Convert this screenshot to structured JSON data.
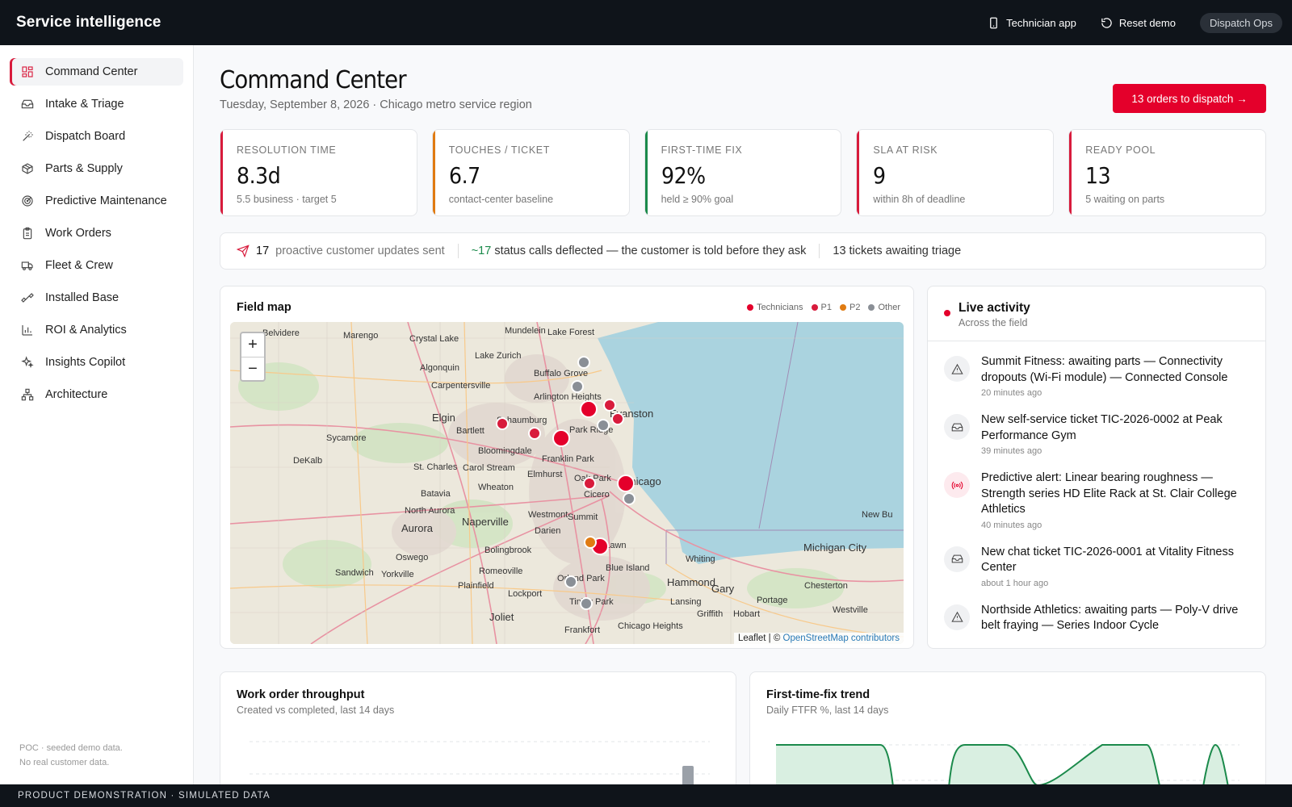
{
  "topbar": {
    "brand": "Service intelligence",
    "technician_app": "Technician app",
    "reset_demo": "Reset demo",
    "role": "Dispatch Ops"
  },
  "sidebar": {
    "items": [
      {
        "label": "Command Center",
        "icon": "grid-icon"
      },
      {
        "label": "Intake & Triage",
        "icon": "inbox-icon"
      },
      {
        "label": "Dispatch Board",
        "icon": "wand-icon"
      },
      {
        "label": "Parts & Supply",
        "icon": "package-icon"
      },
      {
        "label": "Predictive Maintenance",
        "icon": "radar-icon"
      },
      {
        "label": "Work Orders",
        "icon": "clipboard-icon"
      },
      {
        "label": "Fleet & Crew",
        "icon": "truck-icon"
      },
      {
        "label": "Installed Base",
        "icon": "dumbbell-icon"
      },
      {
        "label": "ROI & Analytics",
        "icon": "bar-chart-icon"
      },
      {
        "label": "Insights Copilot",
        "icon": "sparkles-icon"
      },
      {
        "label": "Architecture",
        "icon": "network-icon"
      }
    ],
    "footer_line1": "POC · seeded demo data.",
    "footer_line2": "No real customer data."
  },
  "header": {
    "title": "Command Center",
    "subtitle": "Tuesday, September 8, 2026 · Chicago metro service region",
    "dispatch_button": "13 orders to dispatch →"
  },
  "kpis": [
    {
      "label": "RESOLUTION TIME",
      "value": "8.3d",
      "note": "5.5 business · target 5",
      "color": "#d81b3c"
    },
    {
      "label": "TOUCHES / TICKET",
      "value": "6.7",
      "note": "contact-center baseline",
      "color": "#e07b12"
    },
    {
      "label": "FIRST-TIME FIX",
      "value": "92%",
      "note": "held ≥ 90% goal",
      "color": "#1b8a4b"
    },
    {
      "label": "SLA AT RISK",
      "value": "9",
      "note": "within 8h of deadline",
      "color": "#d81b3c"
    },
    {
      "label": "READY POOL",
      "value": "13",
      "note": "5 waiting on parts",
      "color": "#d81b3c"
    }
  ],
  "strip": {
    "updates_count": "17",
    "updates_label": "proactive customer updates sent",
    "deflected_count": "~17",
    "deflected_label": "status calls deflected — the customer is told before they ask",
    "triage_label": "13 tickets awaiting triage"
  },
  "map": {
    "title": "Field map",
    "legend": [
      {
        "label": "Technicians",
        "color": "#e4002b"
      },
      {
        "label": "P1",
        "color": "#d81b3c"
      },
      {
        "label": "P2",
        "color": "#e07b12"
      },
      {
        "label": "Other",
        "color": "#8a8f96"
      }
    ],
    "zoom_in": "+",
    "zoom_out": "−",
    "attribution_prefix": "Leaflet | © ",
    "attribution_link": "OpenStreetMap contributors",
    "places": [
      "Belvidere",
      "Marengo",
      "Crystal Lake",
      "Mundelein",
      "Lake Forest",
      "Lake Zurich",
      "Carpentersville",
      "Algonquin",
      "Buffalo Grove",
      "Arlington Heights",
      "Elgin",
      "Schaumburg",
      "Evanston",
      "Park Ridge",
      "Sycamore",
      "Bartlett",
      "Bloomingdale",
      "DeKalb",
      "St. Charles",
      "Carol Stream",
      "Franklin Park",
      "Elmhurst",
      "Oak Park",
      "Chicago",
      "Batavia",
      "Wheaton",
      "Cicero",
      "North Aurora",
      "Naperville",
      "Westmont",
      "Summit",
      "Aurora",
      "Darien",
      "Oswego",
      "Bolingbrook",
      "Oak Lawn",
      "Blue Island",
      "Whiting",
      "Hammond",
      "Gary",
      "Michigan City",
      "New Bu",
      "Sandwich",
      "Yorkville",
      "Romeoville",
      "Orland Park",
      "Plainfield",
      "Lockport",
      "Tinley Park",
      "Chesterton",
      "Portage",
      "Westville",
      "Lansing",
      "Griffith",
      "Hobart",
      "Joliet",
      "Frankfort",
      "Chicago Heights"
    ]
  },
  "activity": {
    "title": "Live activity",
    "subtitle": "Across the field",
    "items": [
      {
        "icon": "warning-icon",
        "text": "Summit Fitness: awaiting parts — Connectivity dropouts (Wi-Fi module) — Connected Console",
        "time": "20 minutes ago"
      },
      {
        "icon": "inbox-icon",
        "text": "New self-service ticket TIC-2026-0002 at Peak Performance Gym",
        "time": "39 minutes ago"
      },
      {
        "icon": "radio-icon",
        "text": "Predictive alert: Linear bearing roughness — Strength series HD Elite Rack at St. Clair College Athletics",
        "time": "40 minutes ago"
      },
      {
        "icon": "inbox-icon",
        "text": "New chat ticket TIC-2026-0001 at Vitality Fitness Center",
        "time": "about 1 hour ago"
      },
      {
        "icon": "warning-icon",
        "text": "Northside Athletics: awaiting parts — Poly-V drive belt fraying — Series Indoor Cycle",
        "time": ""
      }
    ]
  },
  "throughput": {
    "title": "Work order throughput",
    "subtitle": "Created vs completed, last 14 days"
  },
  "ftfr": {
    "title": "First-time-fix trend",
    "subtitle": "Daily FTFR %, last 14 days"
  },
  "footer": "PRODUCT DEMONSTRATION · SIMULATED DATA"
}
